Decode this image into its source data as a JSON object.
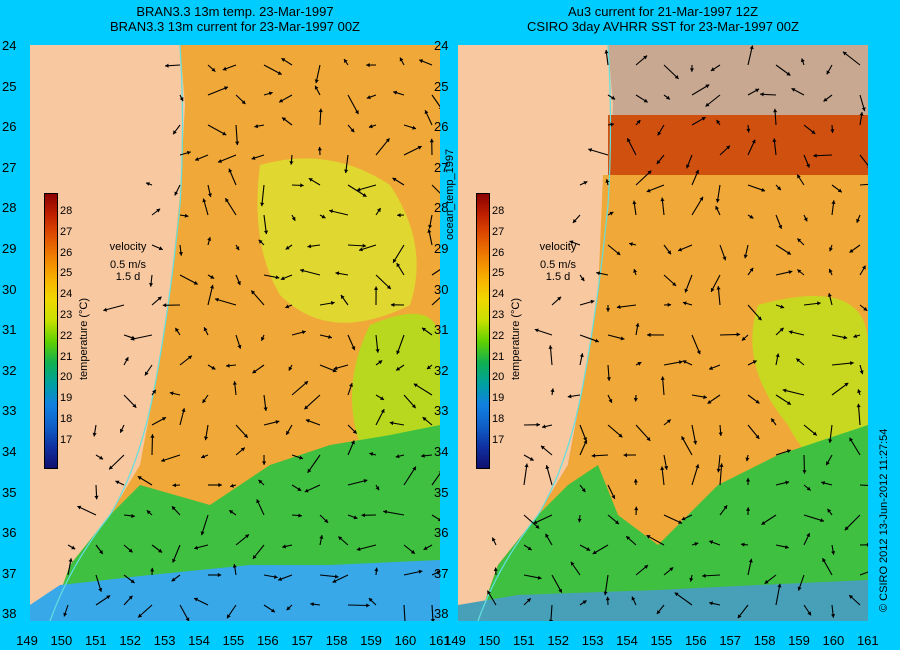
{
  "left": {
    "title_line1": "BRAN3.3 13m temp. 23-Mar-1997",
    "title_line2": "BRAN3.3 13m current for 23-Mar-1997 00Z"
  },
  "right": {
    "title_line1": "Au3 current for 21-Mar-1997 12Z",
    "title_line2": "CSIRO 3day AVHRR SST for 23-Mar-1997 00Z"
  },
  "lat_ticks": [
    "24",
    "25",
    "26",
    "27",
    "28",
    "29",
    "30",
    "31",
    "32",
    "33",
    "34",
    "35",
    "36",
    "37",
    "38"
  ],
  "lon_ticks": [
    "149",
    "150",
    "151",
    "152",
    "153",
    "154",
    "155",
    "156",
    "157",
    "158",
    "159",
    "160",
    "161"
  ],
  "colorbar": {
    "ticks": [
      "28",
      "27",
      "26",
      "25",
      "24",
      "23",
      "22",
      "21",
      "20",
      "19",
      "18",
      "17"
    ],
    "label": "temperature (°C)",
    "colors": [
      "#8b0000",
      "#c02000",
      "#e05000",
      "#f08000",
      "#f8b000",
      "#f0d800",
      "#c8e000",
      "#60d000",
      "#10b050",
      "#00a0a0",
      "#1080e0",
      "#1060c8",
      "#1030a0",
      "#101070"
    ]
  },
  "velocity": {
    "label": "velocity",
    "speed": "0.5 m/s",
    "days": "1.5 d"
  },
  "side_label": "ocean_temp_1997",
  "credit": "© CSIRO 2012  13-Jun-2012 11:27:54",
  "colors": {
    "background": "#00ccff",
    "land": "#f8c8a0",
    "cloud": "#c8a890",
    "warm": "#f0a030",
    "mid": "#e8d020",
    "cool": "#30c040",
    "cold": "#40a0f0"
  }
}
